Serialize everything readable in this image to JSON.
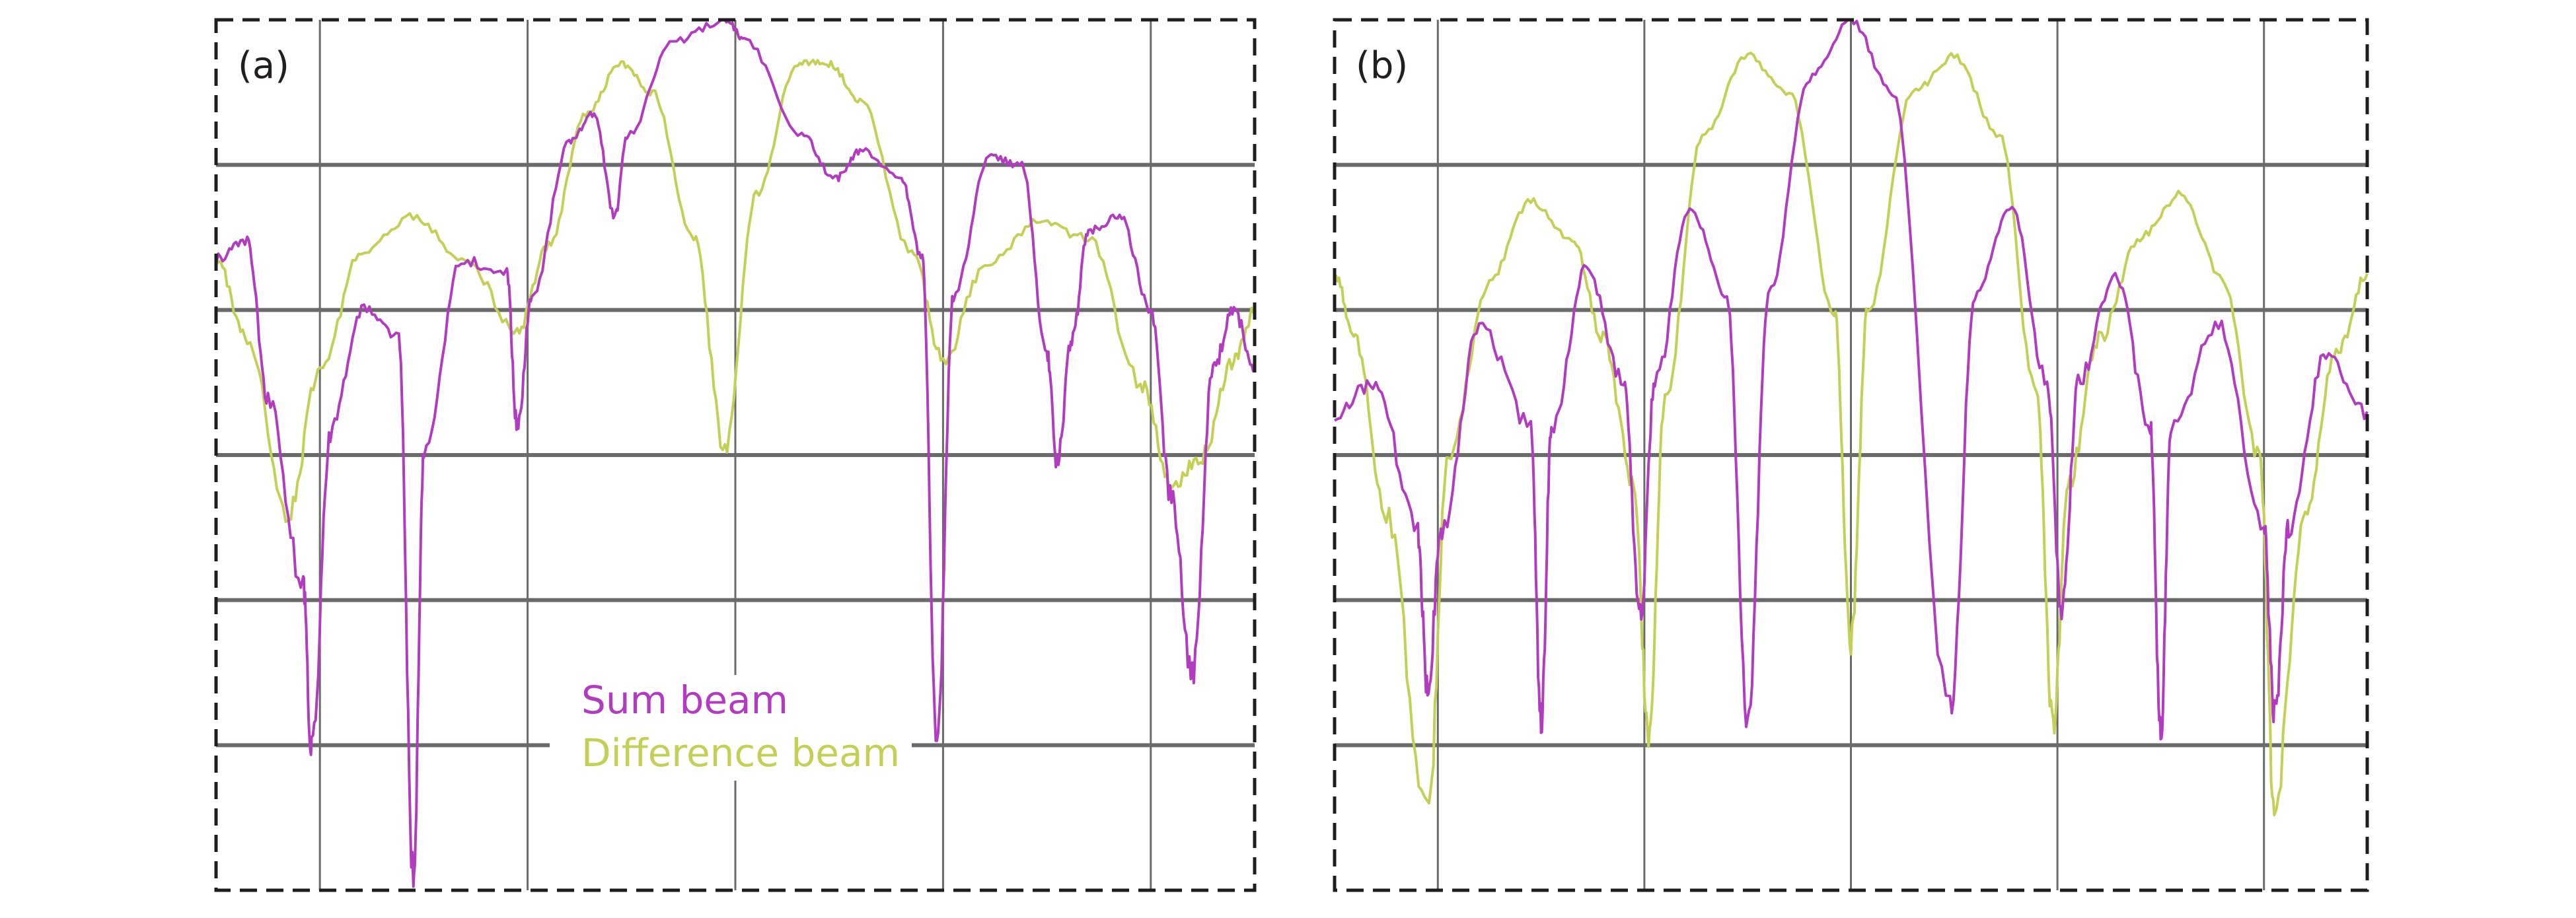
{
  "colors": {
    "sum": "#b23cc0",
    "difference": "#c4cf56",
    "grid": "#6a6a6a",
    "frame": "#1e1e1e",
    "text": "#231f20"
  },
  "legend": {
    "sum": "Sum beam",
    "difference": "Difference beam"
  },
  "chart_data": [
    {
      "panel": "(a)",
      "type": "line",
      "grid": true,
      "x_range": [
        -2.5,
        2.5
      ],
      "y_range": [
        -6,
        0
      ],
      "vertical_gridlines": [
        -2,
        -1,
        0,
        1,
        2
      ],
      "horizontal_gridlines": [
        -1,
        -2,
        -3,
        -4,
        -5
      ],
      "legend_location": "bottom-center",
      "series": [
        {
          "name": "Sum beam",
          "color_key": "sum",
          "points": [
            [
              -2.5,
              -1.65
            ],
            [
              -2.35,
              -1.52
            ],
            [
              -2.25,
              -2.6
            ],
            [
              -2.08,
              -3.9
            ],
            [
              -2.04,
              -5.05
            ],
            [
              -1.95,
              -2.85
            ],
            [
              -1.8,
              -2.0
            ],
            [
              -1.62,
              -2.2
            ],
            [
              -1.55,
              -5.9
            ],
            [
              -1.5,
              -3.0
            ],
            [
              -1.32,
              -1.65
            ],
            [
              -1.1,
              -1.75
            ],
            [
              -1.05,
              -2.8
            ],
            [
              -0.98,
              -1.9
            ],
            [
              -0.8,
              -0.85
            ],
            [
              -0.68,
              -0.65
            ],
            [
              -0.58,
              -1.35
            ],
            [
              -0.52,
              -0.8
            ],
            [
              -0.3,
              -0.15
            ],
            [
              -0.05,
              0.0
            ],
            [
              0.05,
              -0.15
            ],
            [
              0.32,
              -0.8
            ],
            [
              0.48,
              -1.1
            ],
            [
              0.6,
              -0.9
            ],
            [
              0.8,
              -1.1
            ],
            [
              0.9,
              -1.65
            ],
            [
              0.97,
              -5.0
            ],
            [
              1.05,
              -1.9
            ],
            [
              1.22,
              -0.95
            ],
            [
              1.38,
              -1.0
            ],
            [
              1.5,
              -2.3
            ],
            [
              1.55,
              -3.05
            ],
            [
              1.62,
              -2.2
            ],
            [
              1.7,
              -1.45
            ],
            [
              1.85,
              -1.35
            ],
            [
              2.0,
              -2.0
            ],
            [
              2.1,
              -3.3
            ],
            [
              2.2,
              -4.5
            ],
            [
              2.3,
              -2.4
            ],
            [
              2.4,
              -2.0
            ],
            [
              2.5,
              -2.4
            ]
          ]
        },
        {
          "name": "Difference beam",
          "color_key": "difference",
          "points": [
            [
              -2.5,
              -1.65
            ],
            [
              -2.35,
              -2.2
            ],
            [
              -2.15,
              -3.4
            ],
            [
              -2.0,
              -2.4
            ],
            [
              -1.8,
              -1.6
            ],
            [
              -1.55,
              -1.35
            ],
            [
              -1.3,
              -1.65
            ],
            [
              -1.05,
              -2.15
            ],
            [
              -0.9,
              -1.55
            ],
            [
              -0.72,
              -0.65
            ],
            [
              -0.55,
              -0.3
            ],
            [
              -0.4,
              -0.5
            ],
            [
              -0.2,
              -1.5
            ],
            [
              -0.05,
              -2.95
            ],
            [
              0.1,
              -1.2
            ],
            [
              0.3,
              -0.3
            ],
            [
              0.45,
              -0.3
            ],
            [
              0.6,
              -0.55
            ],
            [
              0.85,
              -1.6
            ],
            [
              1.0,
              -2.35
            ],
            [
              1.2,
              -1.7
            ],
            [
              1.45,
              -1.4
            ],
            [
              1.7,
              -1.5
            ],
            [
              1.95,
              -2.5
            ],
            [
              2.1,
              -3.2
            ],
            [
              2.25,
              -3.0
            ],
            [
              2.4,
              -2.35
            ],
            [
              2.5,
              -2.0
            ]
          ]
        }
      ]
    },
    {
      "panel": "(b)",
      "type": "line",
      "grid": true,
      "x_range": [
        -2.5,
        2.5
      ],
      "y_range": [
        -6,
        0
      ],
      "vertical_gridlines": [
        -2,
        -1,
        0,
        1,
        2
      ],
      "horizontal_gridlines": [
        -1,
        -2,
        -3,
        -4,
        -5
      ],
      "series": [
        {
          "name": "Sum beam",
          "color_key": "sum",
          "points": [
            [
              -2.5,
              -2.7
            ],
            [
              -2.3,
              -2.5
            ],
            [
              -2.1,
              -3.5
            ],
            [
              -2.05,
              -4.6
            ],
            [
              -1.98,
              -3.5
            ],
            [
              -1.8,
              -2.1
            ],
            [
              -1.55,
              -2.8
            ],
            [
              -1.5,
              -4.85
            ],
            [
              -1.45,
              -2.8
            ],
            [
              -1.28,
              -1.7
            ],
            [
              -1.1,
              -2.5
            ],
            [
              -1.02,
              -4.1
            ],
            [
              -0.95,
              -2.5
            ],
            [
              -0.78,
              -1.3
            ],
            [
              -0.6,
              -1.9
            ],
            [
              -0.5,
              -4.8
            ],
            [
              -0.4,
              -1.9
            ],
            [
              -0.2,
              -0.4
            ],
            [
              0.0,
              0.0
            ],
            [
              0.2,
              -0.5
            ],
            [
              0.48,
              -4.75
            ],
            [
              0.6,
              -1.9
            ],
            [
              0.78,
              -1.3
            ],
            [
              0.95,
              -2.5
            ],
            [
              1.02,
              -4.1
            ],
            [
              1.1,
              -2.5
            ],
            [
              1.28,
              -1.75
            ],
            [
              1.45,
              -2.8
            ],
            [
              1.5,
              -4.9
            ],
            [
              1.55,
              -2.8
            ],
            [
              1.78,
              -2.1
            ],
            [
              2.0,
              -3.5
            ],
            [
              2.05,
              -4.8
            ],
            [
              2.12,
              -3.5
            ],
            [
              2.3,
              -2.3
            ],
            [
              2.5,
              -2.7
            ]
          ]
        },
        {
          "name": "Difference beam",
          "color_key": "difference",
          "points": [
            [
              -2.5,
              -1.75
            ],
            [
              -2.4,
              -2.2
            ],
            [
              -2.25,
              -3.4
            ],
            [
              -2.05,
              -5.5
            ],
            [
              -1.95,
              -3.0
            ],
            [
              -1.75,
              -1.8
            ],
            [
              -1.55,
              -1.25
            ],
            [
              -1.35,
              -1.5
            ],
            [
              -1.2,
              -2.2
            ],
            [
              -1.05,
              -3.2
            ],
            [
              -0.98,
              -4.9
            ],
            [
              -0.9,
              -2.6
            ],
            [
              -0.72,
              -0.8
            ],
            [
              -0.5,
              -0.25
            ],
            [
              -0.3,
              -0.5
            ],
            [
              -0.08,
              -2.0
            ],
            [
              0.0,
              -4.3
            ],
            [
              0.08,
              -2.0
            ],
            [
              0.3,
              -0.5
            ],
            [
              0.5,
              -0.25
            ],
            [
              0.72,
              -0.8
            ],
            [
              0.9,
              -2.6
            ],
            [
              0.98,
              -4.9
            ],
            [
              1.05,
              -3.2
            ],
            [
              1.2,
              -2.2
            ],
            [
              1.4,
              -1.5
            ],
            [
              1.6,
              -1.2
            ],
            [
              1.8,
              -1.8
            ],
            [
              1.98,
              -3.0
            ],
            [
              2.05,
              -5.4
            ],
            [
              2.2,
              -3.4
            ],
            [
              2.35,
              -2.3
            ],
            [
              2.5,
              -1.75
            ]
          ]
        }
      ]
    }
  ]
}
